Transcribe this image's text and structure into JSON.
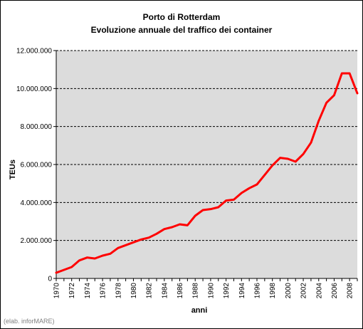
{
  "chart_data": {
    "type": "line",
    "title": "Porto di Rotterdam",
    "subtitle": "Evoluzione annuale del traffico dei container",
    "xlabel": "anni",
    "ylabel": "TEUs",
    "ylim": [
      0,
      12000000
    ],
    "xlim": [
      1970,
      2009
    ],
    "grid": true,
    "y_ticks": [
      0,
      2000000,
      4000000,
      6000000,
      8000000,
      10000000,
      12000000
    ],
    "y_tick_labels": [
      "0",
      "2.000.000",
      "4.000.000",
      "6.000.000",
      "8.000.000",
      "10.000.000",
      "12.000.000"
    ],
    "x_tick_labels": [
      "1970",
      "1972",
      "1974",
      "1976",
      "1978",
      "1980",
      "1982",
      "1984",
      "1986",
      "1988",
      "1990",
      "1992",
      "1994",
      "1996",
      "1998",
      "2000",
      "2002",
      "2004",
      "2006",
      "2008"
    ],
    "series": [
      {
        "name": "",
        "color": "#ff0000",
        "x": [
          1970,
          1971,
          1972,
          1973,
          1974,
          1975,
          1976,
          1977,
          1978,
          1979,
          1980,
          1981,
          1982,
          1983,
          1984,
          1985,
          1986,
          1987,
          1988,
          1989,
          1990,
          1991,
          1992,
          1993,
          1994,
          1995,
          1996,
          1997,
          1998,
          1999,
          2000,
          2001,
          2002,
          2003,
          2004,
          2005,
          2006,
          2007,
          2008,
          2009
        ],
        "values": [
          300000,
          450000,
          600000,
          950000,
          1100000,
          1050000,
          1200000,
          1300000,
          1600000,
          1750000,
          1900000,
          2050000,
          2150000,
          2350000,
          2600000,
          2700000,
          2850000,
          2800000,
          3300000,
          3600000,
          3650000,
          3750000,
          4100000,
          4150000,
          4500000,
          4750000,
          4950000,
          5450000,
          5950000,
          6350000,
          6300000,
          6150000,
          6550000,
          7150000,
          8300000,
          9250000,
          9650000,
          10800000,
          10800000,
          9750000
        ]
      }
    ]
  },
  "footer": {
    "credit": "(elab. inforMARE)"
  }
}
